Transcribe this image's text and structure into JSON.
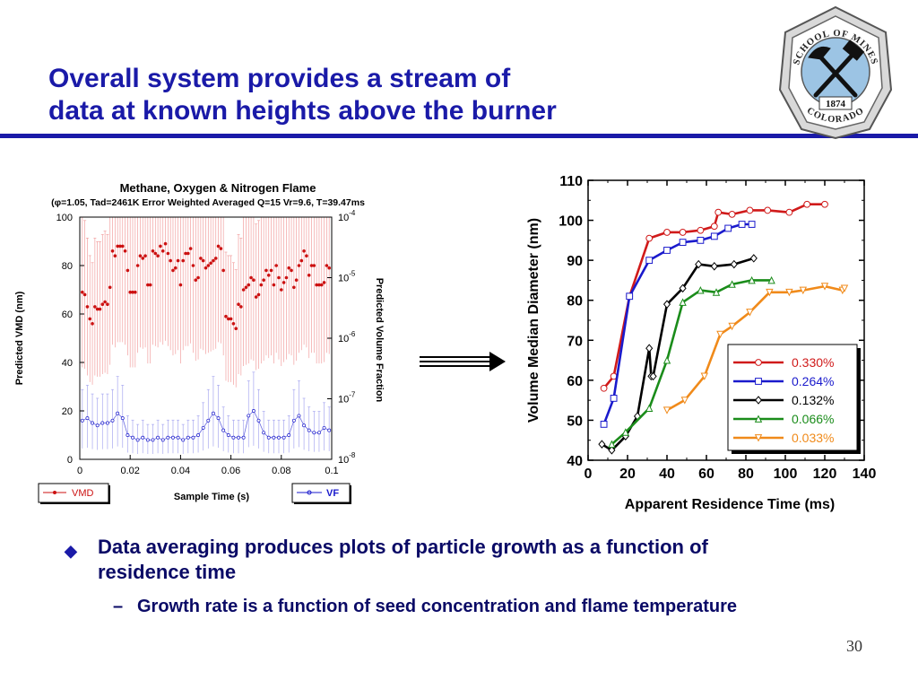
{
  "slide": {
    "title_line1": "Overall system provides a stream of",
    "title_line2": "data at known heights above the burner",
    "bullet1": "Data averaging produces plots of particle growth as a function of residence time",
    "bullet2": "Growth rate is a function of seed concentration and flame temperature",
    "bullet2_dash": "–",
    "page_number": "30",
    "logo": {
      "text_top": "SCHOOL OF MINES",
      "text_bottom": "COLORADO",
      "year": "1874",
      "icon": "crossed-hammer-pick-icon"
    },
    "colors": {
      "title": "#1a1aa8",
      "body": "#0a0a66"
    }
  },
  "chart_data": [
    {
      "type": "scatter",
      "title": "Methane, Oxygen & Nitrogen Flame",
      "subtitle": "(φ=1.05, Tad=2461K Error Weighted Averaged Q=15 Vr=9.6, T=39.47ms",
      "xlabel": "Sample Time (s)",
      "ylabel": "Predicted VMD (nm)",
      "y2label": "Predicted Volume Fraction",
      "xlim": [
        0,
        0.1
      ],
      "ylim": [
        0,
        100
      ],
      "y2scale": "log",
      "y2lim": [
        1e-08,
        0.0001
      ],
      "xticks": [
        "0",
        "0.02",
        "0.04",
        "0.06",
        "0.08",
        "0.1"
      ],
      "yticks": [
        "0",
        "20",
        "40",
        "60",
        "80",
        "100"
      ],
      "y2ticks": [
        {
          "base": "10",
          "exp": "-8"
        },
        {
          "base": "10",
          "exp": "-7"
        },
        {
          "base": "10",
          "exp": "-6"
        },
        {
          "base": "10",
          "exp": "-5"
        },
        {
          "base": "10",
          "exp": "-4"
        }
      ],
      "legend": [
        {
          "label": "VMD",
          "color": "#cc1111",
          "position": "bottom-left"
        },
        {
          "label": "VF",
          "color": "#1a1acc",
          "position": "bottom-right"
        }
      ],
      "series": [
        {
          "name": "VMD",
          "color": "#cc1111",
          "x": [
            0.001,
            0.002,
            0.003,
            0.004,
            0.005,
            0.006,
            0.007,
            0.008,
            0.009,
            0.01,
            0.011,
            0.012,
            0.013,
            0.014,
            0.015,
            0.016,
            0.017,
            0.018,
            0.019,
            0.02,
            0.021,
            0.022,
            0.023,
            0.024,
            0.025,
            0.026,
            0.027,
            0.028,
            0.029,
            0.03,
            0.031,
            0.032,
            0.033,
            0.034,
            0.035,
            0.036,
            0.037,
            0.038,
            0.039,
            0.04,
            0.041,
            0.042,
            0.043,
            0.044,
            0.045,
            0.046,
            0.047,
            0.048,
            0.049,
            0.05,
            0.051,
            0.052,
            0.053,
            0.054,
            0.055,
            0.056,
            0.057,
            0.058,
            0.059,
            0.06,
            0.061,
            0.062,
            0.063,
            0.064,
            0.065,
            0.066,
            0.067,
            0.068,
            0.069,
            0.07,
            0.071,
            0.072,
            0.073,
            0.074,
            0.075,
            0.076,
            0.077,
            0.078,
            0.079,
            0.08,
            0.081,
            0.082,
            0.083,
            0.084,
            0.085,
            0.086,
            0.087,
            0.088,
            0.089,
            0.09,
            0.091,
            0.092,
            0.093,
            0.094,
            0.095,
            0.096,
            0.097,
            0.098,
            0.099
          ],
          "y": [
            69,
            68,
            63,
            58,
            56,
            63,
            62,
            62,
            64,
            65,
            64,
            71,
            86,
            84,
            88,
            88,
            88,
            86,
            78,
            69,
            69,
            69,
            80,
            84,
            83,
            84,
            72,
            72,
            86,
            85,
            84,
            88,
            86,
            89,
            85,
            82,
            78,
            79,
            82,
            72,
            82,
            85,
            85,
            87,
            80,
            74,
            75,
            83,
            82,
            79,
            80,
            81,
            82,
            83,
            88,
            87,
            78,
            59,
            58,
            58,
            56,
            54,
            64,
            63,
            70,
            71,
            72,
            75,
            74,
            67,
            68,
            72,
            74,
            78,
            76,
            78,
            72,
            80,
            75,
            70,
            73,
            75,
            79,
            78,
            71,
            74,
            80,
            82,
            86,
            84,
            76,
            80,
            80,
            72,
            72,
            72,
            73,
            80,
            79
          ],
          "err_frac": 0.45
        },
        {
          "name": "VF",
          "color": "#1a1acc",
          "x": [
            0.001,
            0.003,
            0.005,
            0.007,
            0.009,
            0.011,
            0.013,
            0.015,
            0.017,
            0.019,
            0.021,
            0.023,
            0.025,
            0.027,
            0.029,
            0.031,
            0.033,
            0.035,
            0.037,
            0.039,
            0.041,
            0.043,
            0.045,
            0.047,
            0.049,
            0.051,
            0.053,
            0.055,
            0.057,
            0.059,
            0.061,
            0.063,
            0.065,
            0.067,
            0.069,
            0.071,
            0.073,
            0.075,
            0.077,
            0.079,
            0.081,
            0.083,
            0.085,
            0.087,
            0.089,
            0.091,
            0.093,
            0.095,
            0.097,
            0.099
          ],
          "y": [
            16,
            17,
            15,
            14,
            15,
            15,
            16,
            19,
            17,
            10,
            9,
            8,
            9,
            8,
            8,
            9,
            8,
            9,
            9,
            9,
            8,
            9,
            9,
            10,
            13,
            16,
            19,
            17,
            12,
            10,
            9,
            9,
            9,
            18,
            20,
            16,
            11,
            9,
            9,
            9,
            9,
            10,
            16,
            18,
            14,
            12,
            11,
            11,
            13,
            12
          ],
          "err_frac": 0.8
        }
      ]
    },
    {
      "type": "line",
      "xlabel": "Apparent Residence Time (ms)",
      "ylabel": "Volume Median Diameter (nm)",
      "xlim": [
        0,
        140
      ],
      "ylim": [
        40,
        110
      ],
      "xticks": [
        "0",
        "20",
        "40",
        "60",
        "80",
        "100",
        "120",
        "140"
      ],
      "yticks": [
        "40",
        "50",
        "60",
        "70",
        "80",
        "90",
        "100",
        "110"
      ],
      "legend_position": "bottom-right",
      "series": [
        {
          "name": "0.330%",
          "color": "#d01a1a",
          "marker": "circle",
          "x": [
            8,
            13,
            21,
            31,
            40,
            48,
            57,
            64,
            66,
            73,
            82,
            91,
            102,
            111,
            120
          ],
          "y": [
            58,
            61,
            81,
            95.5,
            97,
            97,
            97.5,
            98.5,
            102,
            101.5,
            102.5,
            102.5,
            102,
            104,
            104
          ]
        },
        {
          "name": "0.264%",
          "color": "#1a1acc",
          "marker": "square",
          "x": [
            8,
            13,
            21,
            31,
            40,
            48,
            57,
            64,
            71,
            78,
            83
          ],
          "y": [
            49,
            55.5,
            81,
            90,
            92.5,
            94.5,
            95,
            96,
            98,
            99,
            99
          ]
        },
        {
          "name": "0.132%",
          "color": "#000000",
          "marker": "diamond",
          "x": [
            7,
            12,
            19,
            25,
            31,
            32,
            33,
            40,
            48,
            56,
            64,
            74,
            84
          ],
          "y": [
            44,
            42.5,
            46,
            51,
            68,
            61,
            61,
            79,
            83,
            89,
            88.5,
            89,
            90.5
          ]
        },
        {
          "name": "0.066%",
          "color": "#1a8c1a",
          "marker": "triangle",
          "x": [
            12,
            19,
            31,
            40,
            48,
            57,
            65,
            73,
            83,
            93
          ],
          "y": [
            44,
            47,
            53,
            65,
            79.5,
            82.5,
            82,
            84,
            85,
            85
          ]
        },
        {
          "name": "0.033%",
          "color": "#f08a1a",
          "marker": "triangle-down",
          "x": [
            40,
            49,
            59,
            67,
            73,
            82,
            92,
            102,
            109,
            120,
            129,
            130
          ],
          "y": [
            52.5,
            55,
            61,
            71.5,
            73.5,
            77,
            82,
            82,
            82.5,
            83.5,
            82.5,
            83
          ]
        }
      ]
    }
  ]
}
